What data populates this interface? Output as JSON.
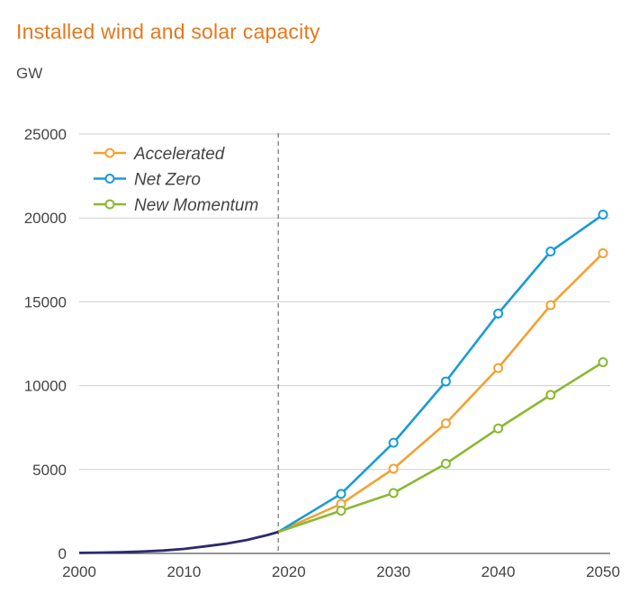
{
  "chart_data": {
    "type": "line",
    "title": "Installed wind and solar capacity",
    "ylabel": "GW",
    "xlim": [
      2000,
      2050
    ],
    "ylim": [
      0,
      25000
    ],
    "xticks": [
      2000,
      2010,
      2020,
      2030,
      2040,
      2050
    ],
    "yticks": [
      0,
      5000,
      10000,
      15000,
      20000,
      25000
    ],
    "grid": "horizontal",
    "legend_position": "top-left",
    "projection_start": 2019,
    "history": {
      "color": "#2e2a6e",
      "x": [
        2000,
        2002,
        2004,
        2006,
        2008,
        2010,
        2012,
        2014,
        2016,
        2018,
        2019
      ],
      "y": [
        30,
        50,
        70,
        110,
        170,
        270,
        420,
        580,
        800,
        1100,
        1280
      ]
    },
    "series": [
      {
        "name": "Accelerated",
        "color": "#f5a031",
        "x": [
          2019,
          2025,
          2030,
          2035,
          2040,
          2045,
          2050
        ],
        "y": [
          1280,
          2950,
          5050,
          7750,
          11050,
          14800,
          17900
        ]
      },
      {
        "name": "Net Zero",
        "color": "#1a9bd6",
        "x": [
          2019,
          2025,
          2030,
          2035,
          2040,
          2045,
          2050
        ],
        "y": [
          1280,
          3550,
          6600,
          10250,
          14300,
          18000,
          20200
        ]
      },
      {
        "name": "New Momentum",
        "color": "#8ab832",
        "x": [
          2019,
          2025,
          2030,
          2035,
          2040,
          2045,
          2050
        ],
        "y": [
          1280,
          2550,
          3600,
          5350,
          7450,
          9450,
          11400
        ]
      }
    ]
  }
}
